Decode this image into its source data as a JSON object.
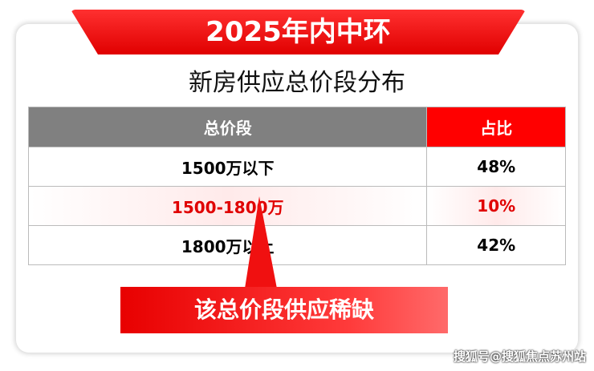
{
  "header": {
    "title": "2025年内中环",
    "subtitle": "新房供应总价段分布"
  },
  "table": {
    "columns": [
      "总价段",
      "占比"
    ],
    "rows": [
      [
        "1500万以下",
        "48%"
      ],
      [
        "1500-1800万",
        "10%"
      ],
      [
        "1800万以上",
        "42%"
      ]
    ]
  },
  "callout": "该总价段供应稀缺",
  "watermark": "搜狐号@搜狐焦点苏州站"
}
